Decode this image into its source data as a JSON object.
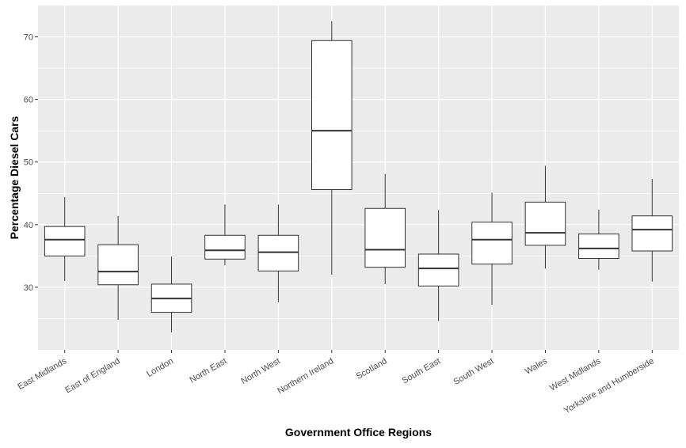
{
  "chart_data": {
    "type": "boxplot",
    "title": "",
    "xlabel": "Government Office Regions",
    "ylabel": "Percentage Diesel Cars",
    "ylim": [
      20,
      75
    ],
    "yticks": [
      30,
      40,
      50,
      60,
      70
    ],
    "grid": true,
    "legend": "none",
    "colors": {
      "panel_background": "#ebebeb",
      "grid_major": "#ffffff",
      "box_fill": "#ffffff",
      "box_stroke": "#333333",
      "tick_text": "#4d4d4d"
    },
    "categories": [
      "East Midlands",
      "East of England",
      "London",
      "North East",
      "North West",
      "Northern Ireland",
      "Scotland",
      "South East",
      "South West",
      "Wales",
      "West Midlands",
      "Yorkshire and Humberside"
    ],
    "boxes": [
      {
        "category": "East Midlands",
        "min": 31.0,
        "q1": 35.0,
        "median": 37.6,
        "q3": 39.7,
        "max": 44.4
      },
      {
        "category": "East of England",
        "min": 24.8,
        "q1": 30.4,
        "median": 32.5,
        "q3": 36.8,
        "max": 41.4
      },
      {
        "category": "London",
        "min": 22.8,
        "q1": 26.0,
        "median": 28.2,
        "q3": 30.5,
        "max": 34.9
      },
      {
        "category": "North East",
        "min": 33.5,
        "q1": 34.5,
        "median": 35.9,
        "q3": 38.3,
        "max": 43.2
      },
      {
        "category": "North West",
        "min": 27.6,
        "q1": 32.6,
        "median": 35.6,
        "q3": 38.3,
        "max": 43.2
      },
      {
        "category": "Northern Ireland",
        "min": 32.0,
        "q1": 45.6,
        "median": 55.0,
        "q3": 69.4,
        "max": 72.5
      },
      {
        "category": "Scotland",
        "min": 30.5,
        "q1": 33.2,
        "median": 36.0,
        "q3": 42.6,
        "max": 48.1
      },
      {
        "category": "South East",
        "min": 24.6,
        "q1": 30.2,
        "median": 33.0,
        "q3": 35.3,
        "max": 42.3
      },
      {
        "category": "South West",
        "min": 27.2,
        "q1": 33.7,
        "median": 37.6,
        "q3": 40.4,
        "max": 45.1
      },
      {
        "category": "Wales",
        "min": 33.0,
        "q1": 36.7,
        "median": 38.7,
        "q3": 43.6,
        "max": 49.4
      },
      {
        "category": "West Midlands",
        "min": 32.8,
        "q1": 34.6,
        "median": 36.2,
        "q3": 38.5,
        "max": 42.4
      },
      {
        "category": "Yorkshire and Humberside",
        "min": 30.9,
        "q1": 35.8,
        "median": 39.2,
        "q3": 41.4,
        "max": 47.3
      }
    ]
  }
}
